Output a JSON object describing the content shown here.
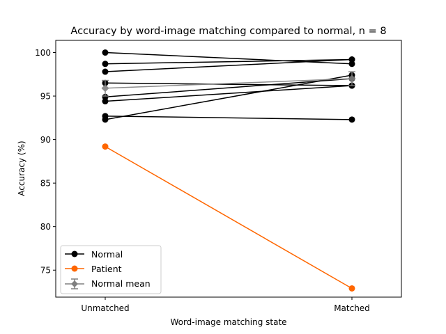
{
  "chart_data": {
    "type": "line",
    "title": "Accuracy by word-image matching compared to normal, n = 8",
    "xlabel": "Word-image matching state",
    "ylabel": "Accuracy (%)",
    "categories": [
      "Unmatched",
      "Matched"
    ],
    "ylim": [
      71.9,
      101.4
    ],
    "yticks": [
      75,
      80,
      85,
      90,
      95,
      100
    ],
    "ytick_labels": [
      "75",
      "80",
      "85",
      "90",
      "95",
      "100"
    ],
    "grid": false,
    "legend_position": "lower-left",
    "normal_series": [
      {
        "values": [
          100.0,
          98.7
        ]
      },
      {
        "values": [
          98.7,
          99.2
        ]
      },
      {
        "values": [
          97.8,
          99.2
        ]
      },
      {
        "values": [
          96.5,
          96.2
        ]
      },
      {
        "values": [
          94.9,
          97.0
        ]
      },
      {
        "values": [
          94.4,
          96.2
        ]
      },
      {
        "values": [
          92.7,
          92.3
        ]
      },
      {
        "values": [
          92.3,
          97.4
        ]
      }
    ],
    "patient_series": {
      "name": "Patient",
      "values": [
        89.2,
        72.9
      ]
    },
    "normal_mean": {
      "name": "Normal mean",
      "values": [
        95.9,
        97.0
      ],
      "errors": [
        0.9,
        0.8
      ]
    },
    "legend": [
      {
        "label": "Normal",
        "color": "#000000",
        "marker": "circle"
      },
      {
        "label": "Patient",
        "color": "#ff6600",
        "marker": "circle"
      },
      {
        "label": "Normal mean",
        "color": "#808080",
        "marker": "diamond"
      }
    ],
    "colors": {
      "normal": "#000000",
      "patient": "#ff6600",
      "mean": "#808080"
    }
  }
}
